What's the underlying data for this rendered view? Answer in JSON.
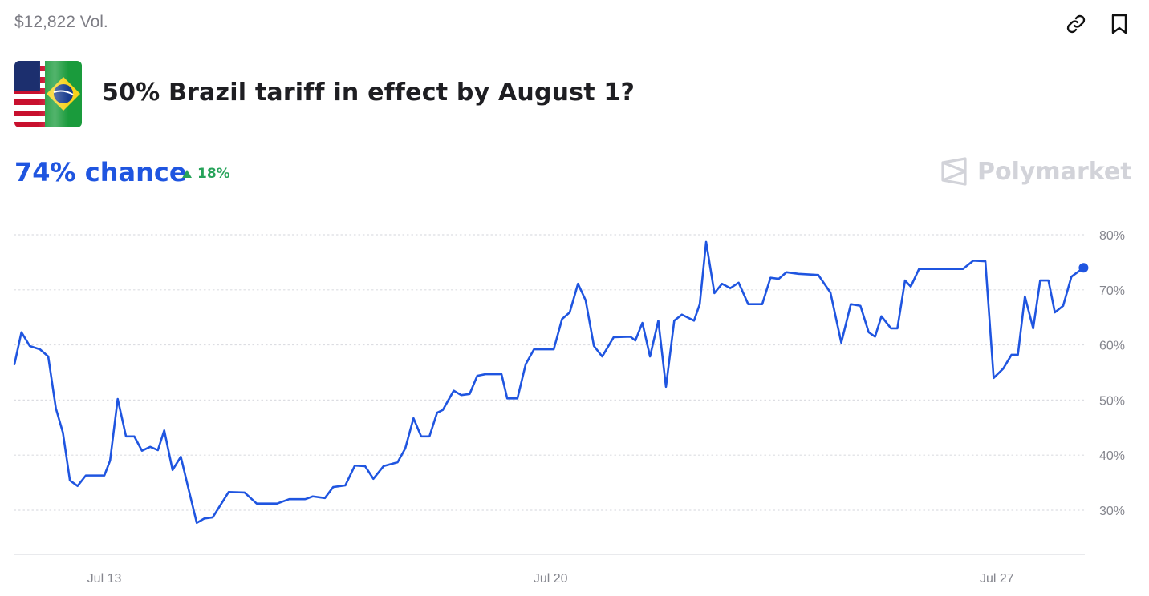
{
  "header": {
    "volume": "$12,822 Vol.",
    "title": "50% Brazil tariff in effect by August 1?",
    "chance": "74% chance",
    "change": "18%",
    "brand": "Polymarket"
  },
  "chart_data": {
    "type": "line",
    "color": "#1f55e0",
    "x": [
      11.59,
      11.7,
      11.83,
      11.99,
      12.12,
      12.24,
      12.35,
      12.46,
      12.58,
      12.71,
      13.0,
      13.09,
      13.21,
      13.34,
      13.47,
      13.59,
      13.72,
      13.84,
      13.94,
      14.07,
      14.2,
      14.32,
      14.45,
      14.57,
      14.7,
      14.95,
      15.2,
      15.39,
      15.71,
      15.9,
      16.15,
      16.27,
      16.46,
      16.59,
      16.78,
      16.93,
      17.09,
      17.22,
      17.38,
      17.6,
      17.72,
      17.85,
      17.97,
      18.1,
      18.22,
      18.31,
      18.48,
      18.6,
      18.73,
      18.85,
      18.98,
      19.23,
      19.32,
      19.48,
      19.61,
      19.74,
      20.05,
      20.18,
      20.3,
      20.43,
      20.55,
      20.68,
      20.81,
      20.99,
      21.25,
      21.33,
      21.44,
      21.56,
      21.69,
      21.81,
      21.94,
      22.06,
      22.25,
      22.34,
      22.44,
      22.57,
      22.69,
      22.82,
      22.95,
      23.1,
      23.32,
      23.45,
      23.58,
      23.7,
      23.89,
      24.2,
      24.39,
      24.56,
      24.71,
      24.86,
      24.99,
      25.09,
      25.19,
      25.34,
      25.44,
      25.56,
      25.65,
      25.78,
      26.47,
      26.63,
      26.82,
      26.95,
      27.1,
      27.23,
      27.33,
      27.44,
      27.57,
      27.68,
      27.81,
      27.91,
      28.04,
      28.17,
      28.36
    ],
    "values": [
      56.5,
      62.3,
      59.8,
      59.2,
      57.9,
      48.5,
      44.1,
      35.4,
      34.4,
      36.3,
      36.3,
      39,
      50.2,
      43.4,
      43.4,
      40.8,
      41.5,
      40.9,
      44.5,
      37.3,
      39.7,
      33.9,
      27.7,
      28.5,
      28.7,
      33.3,
      33.2,
      31.2,
      31.2,
      32,
      32,
      32.5,
      32.2,
      34.2,
      34.5,
      38.1,
      38,
      35.7,
      38,
      38.7,
      41.2,
      46.7,
      43.4,
      43.4,
      47.7,
      48.2,
      51.7,
      50.9,
      51.1,
      54.4,
      54.7,
      54.7,
      50.3,
      50.3,
      56.5,
      59.2,
      59.2,
      64.7,
      65.9,
      71.1,
      68.1,
      59.8,
      57.9,
      61.4,
      61.5,
      60.8,
      64,
      57.9,
      64.4,
      52.4,
      64.4,
      65.5,
      64.4,
      67.4,
      78.7,
      69.4,
      71.1,
      70.3,
      71.3,
      67.4,
      67.4,
      72.2,
      72,
      73.2,
      72.9,
      72.7,
      69.5,
      60.4,
      67.4,
      67.1,
      62.3,
      61.5,
      65.2,
      63,
      63,
      71.7,
      70.6,
      73.8,
      73.8,
      75.3,
      75.2,
      54,
      55.7,
      58.2,
      58.2,
      68.8,
      63,
      71.7,
      71.7,
      65.9,
      67.1,
      72.4,
      74
    ],
    "xlim": [
      11.59,
      28.38
    ],
    "xticks": [
      {
        "value": 13,
        "label": "Jul 13"
      },
      {
        "value": 20,
        "label": "Jul 20"
      },
      {
        "value": 27,
        "label": "Jul 27"
      }
    ],
    "ylim": [
      22,
      80
    ],
    "yticks": [
      {
        "value": 30,
        "label": "30%"
      },
      {
        "value": 40,
        "label": "40%"
      },
      {
        "value": 50,
        "label": "50%"
      },
      {
        "value": 60,
        "label": "60%"
      },
      {
        "value": 70,
        "label": "70%"
      },
      {
        "value": 80,
        "label": "80%"
      }
    ],
    "grid": true
  }
}
